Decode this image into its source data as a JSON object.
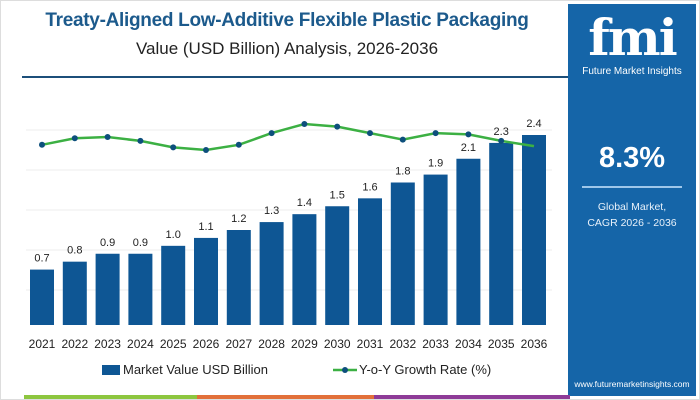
{
  "title": "Treaty-Aligned Low-Additive Flexible Plastic Packaging",
  "subtitle": "Value (USD Billion) Analysis, 2026-2036",
  "panel": {
    "logo": "fmi",
    "logo_sub": "Future Market Insights",
    "cagr": "8.3%",
    "cagr_label_1": "Global Market,",
    "cagr_label_2": "CAGR 2026 - 2036",
    "url": "www.futuremarketinsights.com"
  },
  "colors": {
    "bar": "#0e5694",
    "line": "#3cb043",
    "marker": "#0d4f7c",
    "panel": "#1565a8",
    "title": "#1c5a8c",
    "footer": [
      "#8dc63f",
      "#e2703a",
      "#8e3b97"
    ]
  },
  "chart_data": {
    "type": "bar+line",
    "categories": [
      "2021",
      "2022",
      "2023",
      "2024",
      "2025",
      "2026",
      "2027",
      "2028",
      "2029",
      "2030",
      "2031",
      "2032",
      "2033",
      "2034",
      "2035",
      "2036"
    ],
    "series": [
      {
        "name": "Market Value USD Billion",
        "type": "bar",
        "values": [
          0.7,
          0.8,
          0.9,
          0.9,
          1.0,
          1.1,
          1.2,
          1.3,
          1.4,
          1.5,
          1.6,
          1.8,
          1.9,
          2.1,
          2.3,
          2.4
        ],
        "labels": [
          "0.7",
          "0.8",
          "0.9",
          "0.9",
          "1.0",
          "1.1",
          "1.2",
          "1.3",
          "1.4",
          "1.5",
          "1.6",
          "1.8",
          "1.9",
          "2.1",
          "2.3",
          "2.4"
        ]
      },
      {
        "name": "Y-o-Y Growth Rate (%)",
        "type": "line",
        "values": [
          7.9,
          8.4,
          8.5,
          8.2,
          7.7,
          7.5,
          7.9,
          8.8,
          9.5,
          9.3,
          8.8,
          8.3,
          8.8,
          8.7,
          8.2,
          7.8
        ]
      }
    ],
    "ylim": [
      0,
      2.4
    ],
    "grid": true,
    "legend": "bottom"
  }
}
